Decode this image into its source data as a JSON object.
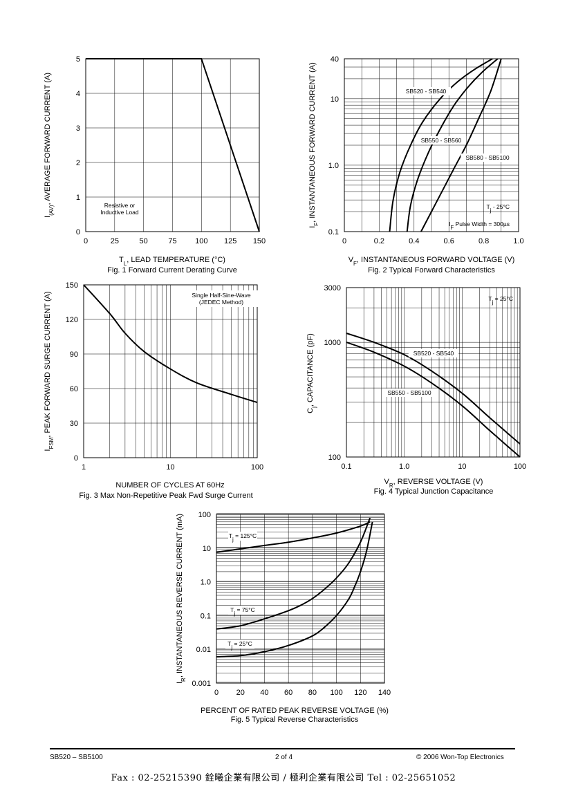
{
  "chart_data": [
    {
      "id": "fig1",
      "type": "line",
      "caption": "Fig. 1  Forward Current Derating Curve",
      "xlabel": "T",
      "xlabel_sub": "L",
      "xlabel_rest": ",  LEAD TEMPERATURE (°C)",
      "ylabel": "I",
      "ylabel_sub": "(AV)",
      "ylabel_rest": ", AVERAGE FORWARD CURRENT (A)",
      "xlim": [
        0,
        150
      ],
      "ylim": [
        0,
        5
      ],
      "xticks": [
        "0",
        "25",
        "50",
        "75",
        "100",
        "125",
        "150"
      ],
      "yticks": [
        "0",
        "1",
        "2",
        "3",
        "4",
        "5"
      ],
      "annotations": [
        {
          "line1": "Resistive or",
          "line2": "Inductive Load"
        }
      ],
      "series": [
        {
          "x": [
            0,
            100,
            150
          ],
          "y": [
            5,
            5,
            0
          ]
        }
      ]
    },
    {
      "id": "fig2",
      "type": "line",
      "scale_y": "log",
      "caption": "Fig. 2  Typical Forward Characteristics",
      "xlabel": "V",
      "xlabel_sub": "F",
      "xlabel_rest": ", INSTANTANEOUS FORWARD VOLTAGE (V)",
      "ylabel": "I",
      "ylabel_sub": "F",
      "ylabel_rest": ", INSTANTANEOUS FORWARD CURRENT (A)",
      "xlim": [
        0,
        1.0
      ],
      "ylim": [
        0.1,
        40
      ],
      "xticks": [
        "0",
        "0.2",
        "0.4",
        "0.6",
        "0.8",
        "1.0"
      ],
      "yticks": [
        "0.1",
        "1.0",
        "10",
        "40"
      ],
      "annotations": [
        {
          "pre": "T",
          "sub": "j",
          "post": " - 25°C"
        },
        {
          "pre": "I",
          "sub": "F",
          "post": " Pulse Width = 300µs"
        }
      ],
      "series": [
        {
          "name": "SB520 - SB540",
          "x": [
            0.26,
            0.28,
            0.32,
            0.38,
            0.45,
            0.55,
            0.65,
            0.75,
            0.85
          ],
          "y": [
            0.1,
            0.3,
            0.8,
            2.0,
            4.5,
            10,
            18,
            28,
            40
          ]
        },
        {
          "name": "SB550 - SB560",
          "x": [
            0.36,
            0.38,
            0.42,
            0.48,
            0.55,
            0.63,
            0.71,
            0.79,
            0.88
          ],
          "y": [
            0.1,
            0.25,
            0.6,
            1.5,
            3.5,
            8,
            15,
            25,
            40
          ]
        },
        {
          "name": "SB580 - SB5100",
          "x": [
            0.44,
            0.5,
            0.56,
            0.63,
            0.7,
            0.77,
            0.84,
            0.9
          ],
          "y": [
            0.1,
            0.2,
            0.4,
            0.9,
            2.0,
            5.0,
            13,
            40
          ]
        }
      ]
    },
    {
      "id": "fig3",
      "type": "line",
      "scale_x": "log",
      "caption": "Fig. 3  Max Non-Repetitive Peak Fwd Surge Current",
      "xlabel": "NUMBER OF CYCLES AT 60Hz",
      "ylabel": "I",
      "ylabel_sub": "FSM",
      "ylabel_rest": ", PEAK FORWARD SURGE CURRENT (A)",
      "xlim": [
        1,
        100
      ],
      "ylim": [
        0,
        150
      ],
      "xticks": [
        "1",
        "10",
        "100"
      ],
      "yticks": [
        "0",
        "30",
        "60",
        "90",
        "120",
        "150"
      ],
      "annotations": [
        {
          "line1": "Single Half-Sine-Wave",
          "line2": "(JEDEC Method)"
        }
      ],
      "series": [
        {
          "x": [
            1,
            2,
            3,
            5,
            10,
            20,
            50,
            100
          ],
          "y": [
            150,
            125,
            108,
            92,
            77,
            65,
            55,
            48
          ]
        }
      ]
    },
    {
      "id": "fig4",
      "type": "line",
      "scale_x": "log",
      "scale_y": "log",
      "caption": "Fig. 4  Typical Junction Capacitance",
      "xlabel": "V",
      "xlabel_sub": "R",
      "xlabel_rest": ", REVERSE VOLTAGE (V)",
      "ylabel": "C",
      "ylabel_sub": "j",
      "ylabel_rest": ", CAPACITANCE (pF)",
      "xlim": [
        0.1,
        100
      ],
      "ylim": [
        100,
        3000
      ],
      "xticks": [
        "0.1",
        "1.0",
        "10",
        "100"
      ],
      "yticks": [
        "100",
        "1000",
        "3000"
      ],
      "annotations": [
        {
          "pre": "T",
          "sub": "j",
          "post": " = 25°C"
        }
      ],
      "series": [
        {
          "name": "SB520 - SB540",
          "x": [
            0.1,
            0.3,
            1,
            3,
            10,
            30,
            100
          ],
          "y": [
            1200,
            1000,
            780,
            560,
            360,
            220,
            130
          ]
        },
        {
          "name": "SB550 - SB5100",
          "x": [
            0.1,
            0.3,
            1,
            3,
            10,
            30,
            100
          ],
          "y": [
            1000,
            820,
            620,
            440,
            280,
            170,
            100
          ]
        }
      ]
    },
    {
      "id": "fig5",
      "type": "line",
      "scale_y": "log",
      "caption": "Fig. 5  Typical Reverse Characteristics",
      "xlabel": "PERCENT OF RATED PEAK REVERSE VOLTAGE (%)",
      "ylabel": "I",
      "ylabel_sub": "R",
      "ylabel_rest": ", INSTANTANEOUS REVERSE CURRENT (mA)",
      "xlim": [
        0,
        140
      ],
      "ylim": [
        0.001,
        100
      ],
      "xticks": [
        "0",
        "20",
        "40",
        "60",
        "80",
        "100",
        "120",
        "140"
      ],
      "yticks": [
        "0.001",
        "0.01",
        "0.1",
        "1.0",
        "10",
        "100"
      ],
      "series": [
        {
          "name_pre": "T",
          "name_sub": "j",
          "name_post": " = 125°C",
          "x": [
            0,
            20,
            40,
            60,
            80,
            100,
            120,
            128
          ],
          "y": [
            7.5,
            9.5,
            12,
            15,
            20,
            28,
            45,
            60
          ]
        },
        {
          "name_pre": "T",
          "name_sub": "j",
          "name_post": " = 75°C",
          "x": [
            0,
            20,
            40,
            60,
            70,
            80,
            90,
            100,
            110,
            120,
            128
          ],
          "y": [
            0.04,
            0.05,
            0.08,
            0.14,
            0.2,
            0.32,
            0.6,
            1.3,
            3.5,
            15,
            80
          ]
        },
        {
          "name_pre": "T",
          "name_sub": "j",
          "name_post": " = 25°C",
          "x": [
            0,
            20,
            40,
            60,
            80,
            90,
            100,
            110,
            115,
            120,
            125,
            130
          ],
          "y": [
            0.006,
            0.0065,
            0.0085,
            0.013,
            0.025,
            0.045,
            0.1,
            0.3,
            0.7,
            2.0,
            8,
            60
          ]
        }
      ]
    }
  ],
  "footer": {
    "left": "SB520 – SB5100",
    "center": "2 of 4",
    "right": "© 2006 Won-Top Electronics",
    "fax": "Fax : 02-25215390   銓曦企業有限公司 / 極利企業有限公司   Tel : 02-25651052"
  }
}
